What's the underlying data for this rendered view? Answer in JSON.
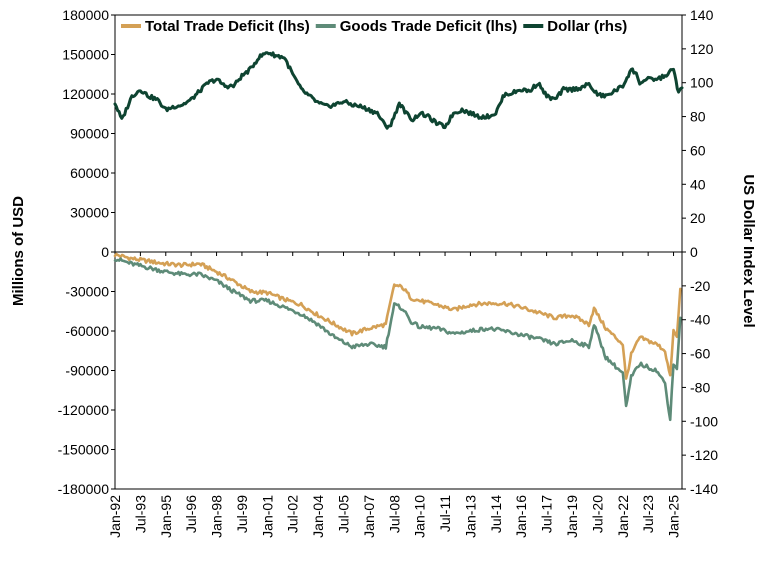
{
  "chart_data": {
    "type": "line",
    "ylabel_left": "Millions of USD",
    "ylabel_right": "US Dollar Index Level",
    "ylim_left": [
      -180000,
      180000
    ],
    "ylim_right": [
      -140,
      140
    ],
    "yticks_left": [
      "180000",
      "150000",
      "120000",
      "90000",
      "60000",
      "30000",
      "0",
      "-30000",
      "-60000",
      "-90000",
      "-120000",
      "-150000",
      "-180000"
    ],
    "yticks_right": [
      "140",
      "120",
      "100",
      "80",
      "60",
      "40",
      "20",
      "0",
      "-20",
      "-40",
      "-60",
      "-80",
      "-100",
      "-120",
      "-140"
    ],
    "xticks": [
      "Jan-92",
      "Jul-93",
      "Jan-95",
      "Jul-96",
      "Jan-98",
      "Jul-99",
      "Jan-01",
      "Jul-02",
      "Jan-04",
      "Jul-05",
      "Jan-07",
      "Jul-08",
      "Jan-10",
      "Jul-11",
      "Jan-13",
      "Jul-14",
      "Jan-16",
      "Jul-17",
      "Jan-19",
      "Jul-20",
      "Jan-22",
      "Jul-23",
      "Jan-25"
    ],
    "legend_position": "top",
    "grid": false,
    "series": [
      {
        "name": "Total Trade Deficit (lhs)",
        "axis": "left",
        "color": "#D4A055",
        "x": [
          1992.0,
          1993.0,
          1994.0,
          1995.0,
          1996.0,
          1997.0,
          1998.0,
          1999.0,
          2000.0,
          2001.0,
          2002.0,
          2003.0,
          2004.0,
          2005.0,
          2006.0,
          2007.0,
          2008.0,
          2008.5,
          2009.0,
          2009.5,
          2010.0,
          2011.0,
          2012.0,
          2013.0,
          2014.0,
          2015.0,
          2016.0,
          2017.0,
          2018.0,
          2019.0,
          2020.0,
          2020.3,
          2021.0,
          2022.0,
          2022.2,
          2022.5,
          2023.0,
          2024.0,
          2024.5,
          2024.8,
          2025.0,
          2025.2,
          2025.4
        ],
        "values": [
          -2000,
          -5000,
          -7000,
          -9000,
          -10000,
          -9000,
          -15000,
          -22000,
          -30000,
          -31000,
          -36000,
          -40000,
          -48000,
          -55000,
          -62000,
          -58000,
          -55000,
          -25000,
          -27000,
          -35000,
          -37000,
          -40000,
          -44000,
          -40000,
          -39000,
          -39000,
          -42000,
          -46000,
          -50000,
          -48000,
          -55000,
          -43000,
          -58000,
          -70000,
          -97000,
          -78000,
          -65000,
          -70000,
          -75000,
          -95000,
          -60000,
          -65000,
          -28000
        ]
      },
      {
        "name": "Goods Trade Deficit (lhs)",
        "axis": "left",
        "color": "#5E8B78",
        "x": [
          1992.0,
          1993.0,
          1994.0,
          1995.0,
          1996.0,
          1997.0,
          1998.0,
          1999.0,
          2000.0,
          2001.0,
          2002.0,
          2003.0,
          2004.0,
          2005.0,
          2006.0,
          2007.0,
          2008.0,
          2008.5,
          2009.0,
          2009.5,
          2010.0,
          2011.0,
          2012.0,
          2013.0,
          2014.0,
          2015.0,
          2016.0,
          2017.0,
          2018.0,
          2019.0,
          2020.0,
          2020.3,
          2021.0,
          2022.0,
          2022.2,
          2022.5,
          2023.0,
          2024.0,
          2024.5,
          2024.8,
          2025.0,
          2025.2,
          2025.4
        ],
        "values": [
          -5000,
          -9000,
          -12000,
          -15000,
          -17000,
          -17000,
          -22000,
          -30000,
          -37000,
          -37000,
          -42000,
          -47000,
          -55000,
          -65000,
          -72000,
          -70000,
          -72000,
          -40000,
          -43000,
          -53000,
          -57000,
          -58000,
          -62000,
          -60000,
          -58000,
          -60000,
          -63000,
          -66000,
          -70000,
          -67000,
          -72000,
          -55000,
          -80000,
          -92000,
          -118000,
          -95000,
          -85000,
          -90000,
          -100000,
          -127000,
          -85000,
          -88000,
          -50000
        ]
      },
      {
        "name": "Dollar (rhs)",
        "axis": "right",
        "color": "#0E4431",
        "x": [
          1992.0,
          1992.4,
          1993.0,
          1993.5,
          1994.0,
          1994.5,
          1995.0,
          1995.5,
          1996.0,
          1996.5,
          1997.0,
          1997.5,
          1998.0,
          1998.5,
          1999.0,
          1999.5,
          2000.0,
          2000.5,
          2001.0,
          2001.5,
          2002.0,
          2002.5,
          2003.0,
          2003.5,
          2004.0,
          2004.5,
          2005.0,
          2005.5,
          2006.0,
          2006.5,
          2007.0,
          2007.5,
          2008.0,
          2008.3,
          2008.8,
          2009.2,
          2009.6,
          2010.0,
          2010.5,
          2011.0,
          2011.5,
          2012.0,
          2012.5,
          2013.0,
          2013.5,
          2014.0,
          2014.5,
          2015.0,
          2015.5,
          2016.0,
          2016.5,
          2017.0,
          2017.5,
          2018.0,
          2018.5,
          2019.0,
          2019.5,
          2020.0,
          2020.5,
          2021.0,
          2021.5,
          2022.0,
          2022.5,
          2022.8,
          2023.0,
          2023.5,
          2024.0,
          2024.5,
          2025.0,
          2025.3,
          2025.5
        ],
        "values": [
          88,
          78,
          92,
          96,
          92,
          90,
          84,
          86,
          87,
          90,
          95,
          100,
          102,
          98,
          98,
          104,
          108,
          115,
          118,
          116,
          115,
          105,
          96,
          92,
          88,
          86,
          87,
          89,
          87,
          86,
          84,
          82,
          74,
          75,
          88,
          82,
          78,
          82,
          80,
          76,
          74,
          82,
          84,
          82,
          80,
          80,
          82,
          93,
          94,
          96,
          95,
          100,
          92,
          90,
          96,
          96,
          97,
          99,
          93,
          92,
          95,
          98,
          108,
          105,
          100,
          102,
          102,
          104,
          108,
          94,
          97
        ]
      }
    ]
  }
}
